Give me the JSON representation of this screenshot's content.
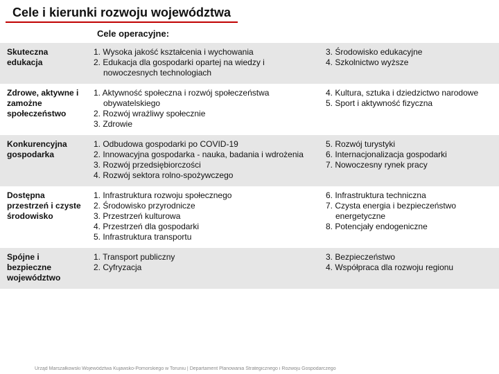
{
  "title": "Cele i kierunki rozwoju województwa",
  "subtitle": "Cele operacyjne:",
  "rows": [
    {
      "shade": true,
      "head": "Skuteczna edukacja",
      "left": [
        "1. Wysoka jakość kształcenia i wychowania",
        "2. Edukacja dla gospodarki opartej na wiedzy i nowoczesnych technologiach"
      ],
      "right": [
        "3. Środowisko edukacyjne",
        "4. Szkolnictwo wyższe"
      ]
    },
    {
      "shade": false,
      "head": "Zdrowe, aktywne i zamożne społeczeństwo",
      "left": [
        "1. Aktywność społeczna i rozwój społeczeństwa obywatelskiego",
        "2. Rozwój wrażliwy społecznie",
        "3. Zdrowie"
      ],
      "right": [
        "4. Kultura, sztuka i dziedzictwo narodowe",
        "5. Sport i aktywność fizyczna"
      ]
    },
    {
      "shade": true,
      "head": "Konkurencyjna gospodarka",
      "left": [
        "1. Odbudowa gospodarki po COVID-19",
        "2. Innowacyjna gospodarka - nauka, badania i wdrożenia",
        "3. Rozwój przedsiębiorczości",
        "4. Rozwój sektora rolno-spożywczego"
      ],
      "right": [
        "5. Rozwój turystyki",
        "6. Internacjonalizacja gospodarki",
        "7. Nowoczesny rynek pracy"
      ]
    },
    {
      "shade": false,
      "head": "Dostępna przestrzeń i czyste środowisko",
      "left": [
        "1. Infrastruktura rozwoju społecznego",
        "2. Środowisko przyrodnicze",
        "3. Przestrzeń kulturowa",
        "4. Przestrzeń dla gospodarki",
        "5. Infrastruktura transportu"
      ],
      "right": [
        "6. Infrastruktura techniczna",
        "7. Czysta energia i bezpieczeństwo energetyczne",
        "8. Potencjały endogeniczne"
      ]
    },
    {
      "shade": true,
      "head": "Spójne i bezpieczne województwo",
      "left": [
        "1. Transport publiczny",
        "2. Cyfryzacja"
      ],
      "right": [
        "3. Bezpieczeństwo",
        "4. Współpraca dla rozwoju regionu"
      ]
    }
  ],
  "footer": "Urząd Marszałkowski Województwa Kujawsko-Pomorskiego w Toruniu  |  Departament Planowania Strategicznego i Rozwoju Gospodarczego"
}
